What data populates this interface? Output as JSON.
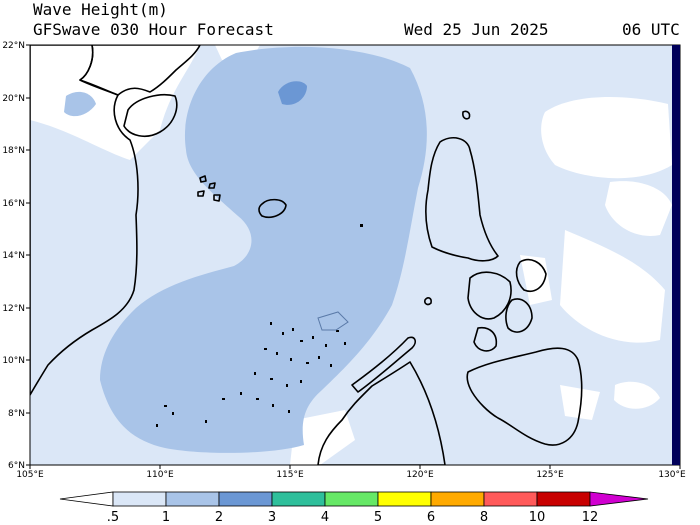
{
  "title": {
    "line1": "Wave Height(m)",
    "line2": "GFSwave 030 Hour Forecast",
    "date": "Wed 25 Jun 2025",
    "time": "06 UTC"
  },
  "map": {
    "lat_labels": [
      "22°N",
      "20°N",
      "18°N",
      "16°N",
      "14°N",
      "12°N",
      "10°N",
      "8°N",
      "6°N"
    ],
    "lon_labels": [
      "105°E",
      "110°E",
      "115°E",
      "120°E",
      "125°E",
      "130°E"
    ],
    "colors": {
      "band_0_5_1": "#dbe7f7",
      "band_1_2": "#a9c4e8",
      "band_2_3": "#6b97d4",
      "land": "#ffffff",
      "right_edge": "#00005a"
    }
  },
  "colorbar": {
    "labels": [
      ".5",
      "1",
      "2",
      "3",
      "4",
      "5",
      "6",
      "8",
      "10",
      "12"
    ],
    "colors": [
      "#ffffff",
      "#dbe7f7",
      "#a9c4e8",
      "#6b97d4",
      "#2ebf9b",
      "#66e866",
      "#ffff00",
      "#ffaa00",
      "#ff5a5a",
      "#c80000",
      "#d000d0"
    ]
  }
}
